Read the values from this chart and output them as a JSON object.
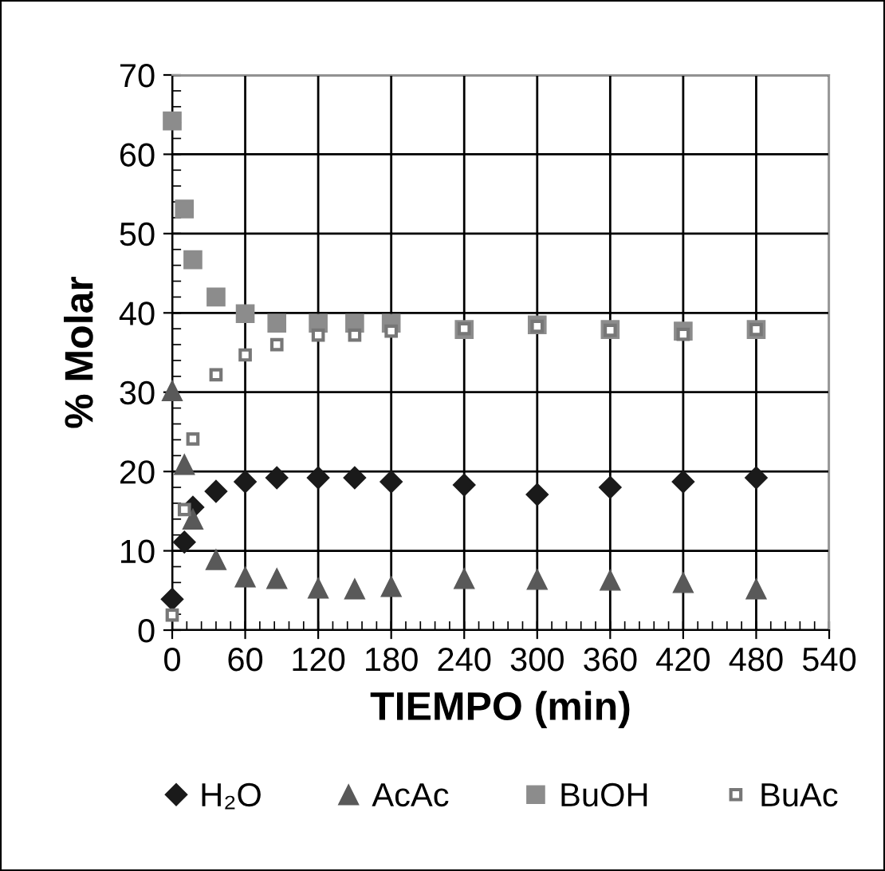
{
  "chart_data": {
    "type": "scatter",
    "xlabel": "TIEMPO (min)",
    "ylabel": "% Molar",
    "xlim": [
      0,
      540
    ],
    "xticks": [
      0,
      60,
      120,
      180,
      240,
      300,
      360,
      420,
      480,
      540
    ],
    "ylim": [
      0,
      70
    ],
    "yticks": [
      0,
      10,
      20,
      30,
      40,
      50,
      60,
      70
    ],
    "grid": true,
    "legend": "bottom",
    "series": [
      {
        "name": "H₂O",
        "color": "#1a1a1a",
        "marker": "diamond",
        "x": [
          0,
          10,
          17,
          36,
          60,
          86,
          120,
          150,
          180,
          240,
          300,
          360,
          420,
          480
        ],
        "values": [
          3.9,
          11.1,
          15.5,
          17.5,
          18.7,
          19.2,
          19.2,
          19.2,
          18.7,
          18.3,
          17.1,
          18.0,
          18.7,
          19.2
        ]
      },
      {
        "name": "AcAc",
        "color": "#595959",
        "marker": "triangle",
        "x": [
          0,
          10,
          17,
          36,
          60,
          86,
          120,
          150,
          180,
          240,
          300,
          360,
          420,
          480
        ],
        "values": [
          30.2,
          20.9,
          14.0,
          8.9,
          6.7,
          6.5,
          5.3,
          5.2,
          5.5,
          6.5,
          6.4,
          6.3,
          6.0,
          5.2
        ]
      },
      {
        "name": "BuOH",
        "color": "#8c8c8c",
        "marker": "square",
        "x": [
          0,
          10,
          17,
          36,
          60,
          86,
          120,
          150,
          180,
          240,
          300,
          360,
          420,
          480
        ],
        "values": [
          64.2,
          53.1,
          46.7,
          42.0,
          39.9,
          38.7,
          38.7,
          38.7,
          38.7,
          37.9,
          38.5,
          37.9,
          37.7,
          37.9
        ]
      },
      {
        "name": "BuAc",
        "color": "#777777",
        "marker": "square",
        "x": [
          0,
          10,
          17,
          36,
          60,
          86,
          120,
          150,
          180,
          240,
          300,
          360,
          420,
          480
        ],
        "values": [
          1.9,
          15.2,
          24.1,
          32.2,
          34.7,
          36.0,
          37.2,
          37.2,
          37.7,
          38.0,
          38.3,
          37.8,
          37.3,
          37.9
        ]
      }
    ]
  }
}
